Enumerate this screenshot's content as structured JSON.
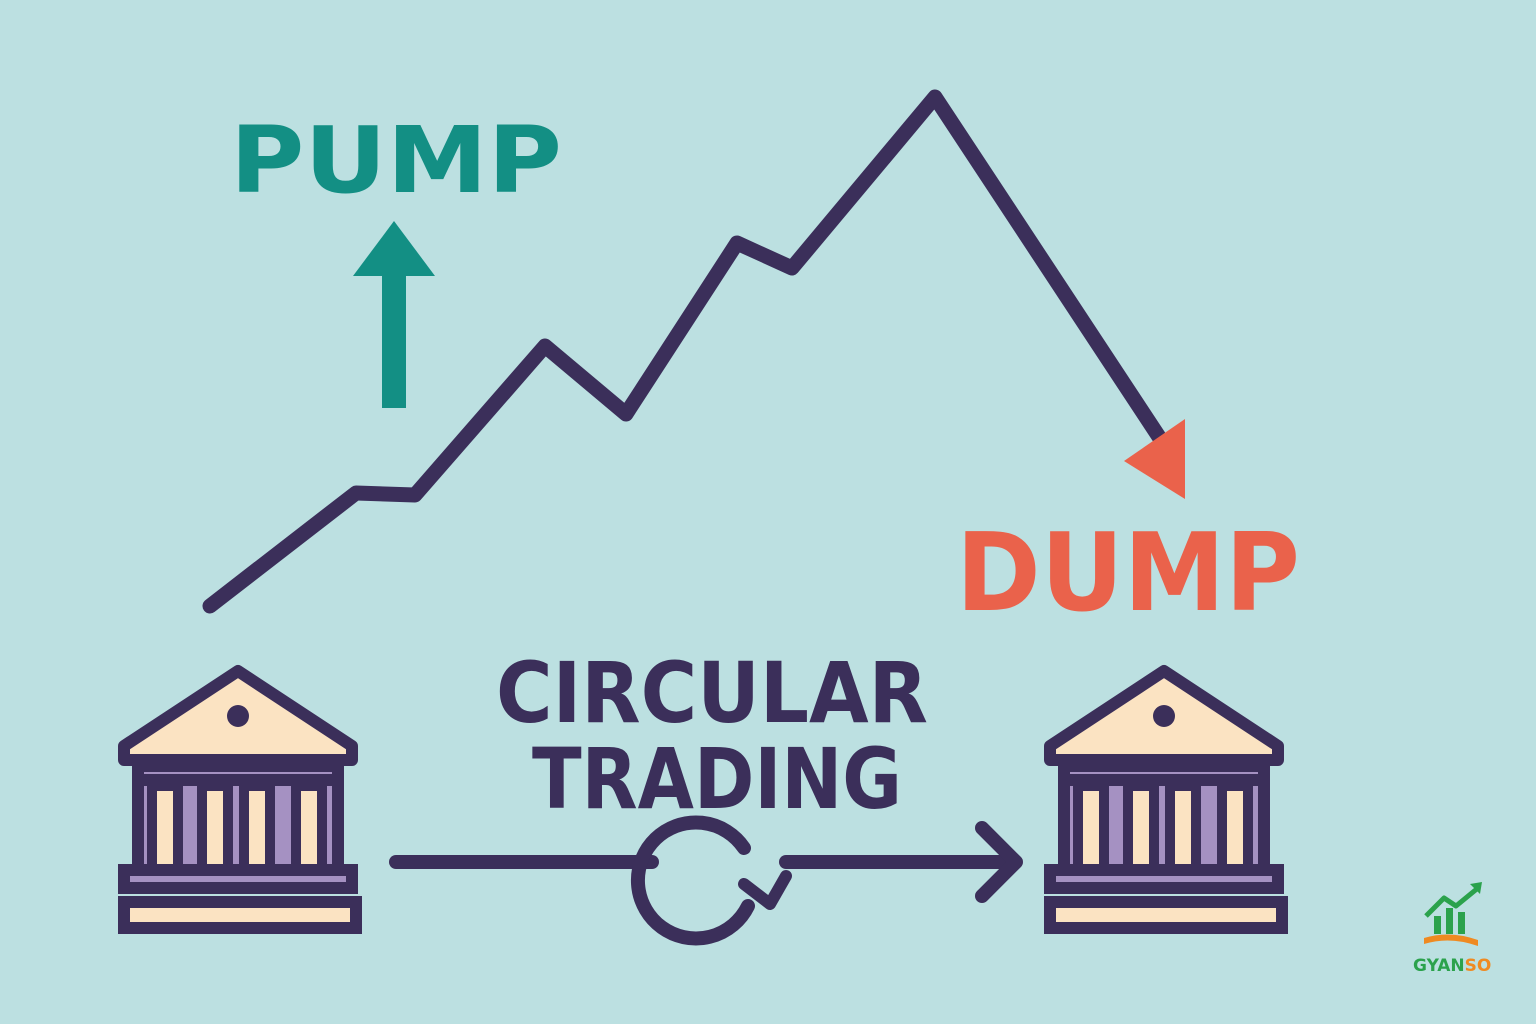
{
  "labels": {
    "pump": "PUMP",
    "dump": "DUMP",
    "circular_line1": "CIRCULAR",
    "circular_line2": "TRADING"
  },
  "logo": {
    "text_part1": "GYAN",
    "text_part2": "SO"
  },
  "icons": [
    "bank-icon",
    "up-arrow-icon",
    "down-arrow-icon",
    "cycle-icon",
    "right-arrow-icon"
  ],
  "colors": {
    "background": "#bce0e1",
    "pump": "#138f84",
    "dump": "#ea624b",
    "line": "#3b2f5a",
    "bank_roof": "#fbe3c2",
    "bank_body": "#a591c2",
    "logo_green": "#2ba24c",
    "logo_orange": "#ef8a21"
  }
}
